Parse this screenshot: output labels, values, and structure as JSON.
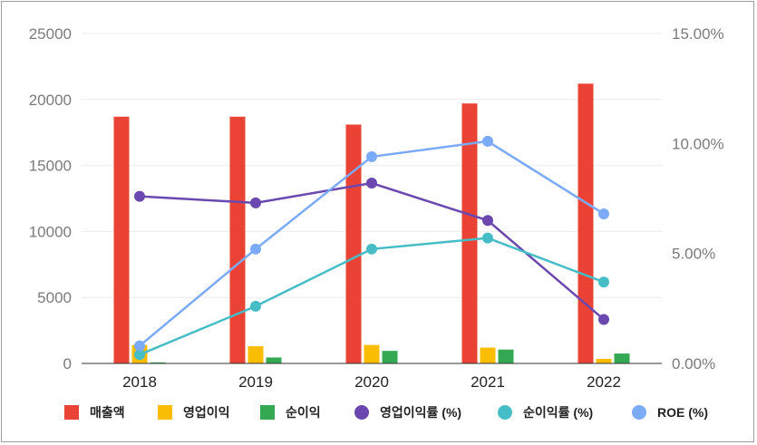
{
  "chart_data": {
    "type": "bar",
    "categories": [
      "2018",
      "2019",
      "2020",
      "2021",
      "2022"
    ],
    "y_left": {
      "ticks": [
        "0",
        "5000",
        "10000",
        "15000",
        "20000",
        "25000"
      ],
      "range": [
        0,
        25000
      ]
    },
    "y_right": {
      "ticks": [
        "0.00%",
        "5.00%",
        "10.00%",
        "15.00%"
      ],
      "range": [
        0,
        15
      ]
    },
    "grid": true,
    "legend_position": "bottom",
    "bar_series": [
      {
        "name": "매출액",
        "color": "#ea4335",
        "values": [
          18700,
          18700,
          18100,
          19700,
          21200
        ]
      },
      {
        "name": "영업이익",
        "color": "#fbbc04",
        "values": [
          1400,
          1300,
          1400,
          1200,
          350
        ]
      },
      {
        "name": "순이익",
        "color": "#34a853",
        "values": [
          80,
          450,
          950,
          1050,
          750
        ]
      }
    ],
    "line_series": [
      {
        "name": "영업이익률 (%)",
        "color": "#6a48b0",
        "values": [
          7.6,
          7.3,
          8.2,
          6.5,
          2.0
        ]
      },
      {
        "name": "순이익률 (%)",
        "color": "#46bdc6",
        "values": [
          0.4,
          2.6,
          5.2,
          5.7,
          3.7
        ]
      },
      {
        "name": "ROE (%)",
        "color": "#7baaf7",
        "values": [
          0.8,
          5.2,
          9.4,
          10.1,
          6.8
        ]
      }
    ]
  },
  "legend": {
    "items": [
      {
        "label": "매출액",
        "shape": "square",
        "color": "#ea4335"
      },
      {
        "label": "영업이익",
        "shape": "square",
        "color": "#fbbc04"
      },
      {
        "label": "순이익",
        "shape": "square",
        "color": "#34a853"
      },
      {
        "label": "영업이익률 (%)",
        "shape": "circle",
        "color": "#6a48b0"
      },
      {
        "label": "순이익률 (%)",
        "shape": "circle",
        "color": "#46bdc6"
      },
      {
        "label": "ROE (%)",
        "shape": "circle",
        "color": "#7baaf7"
      }
    ]
  }
}
